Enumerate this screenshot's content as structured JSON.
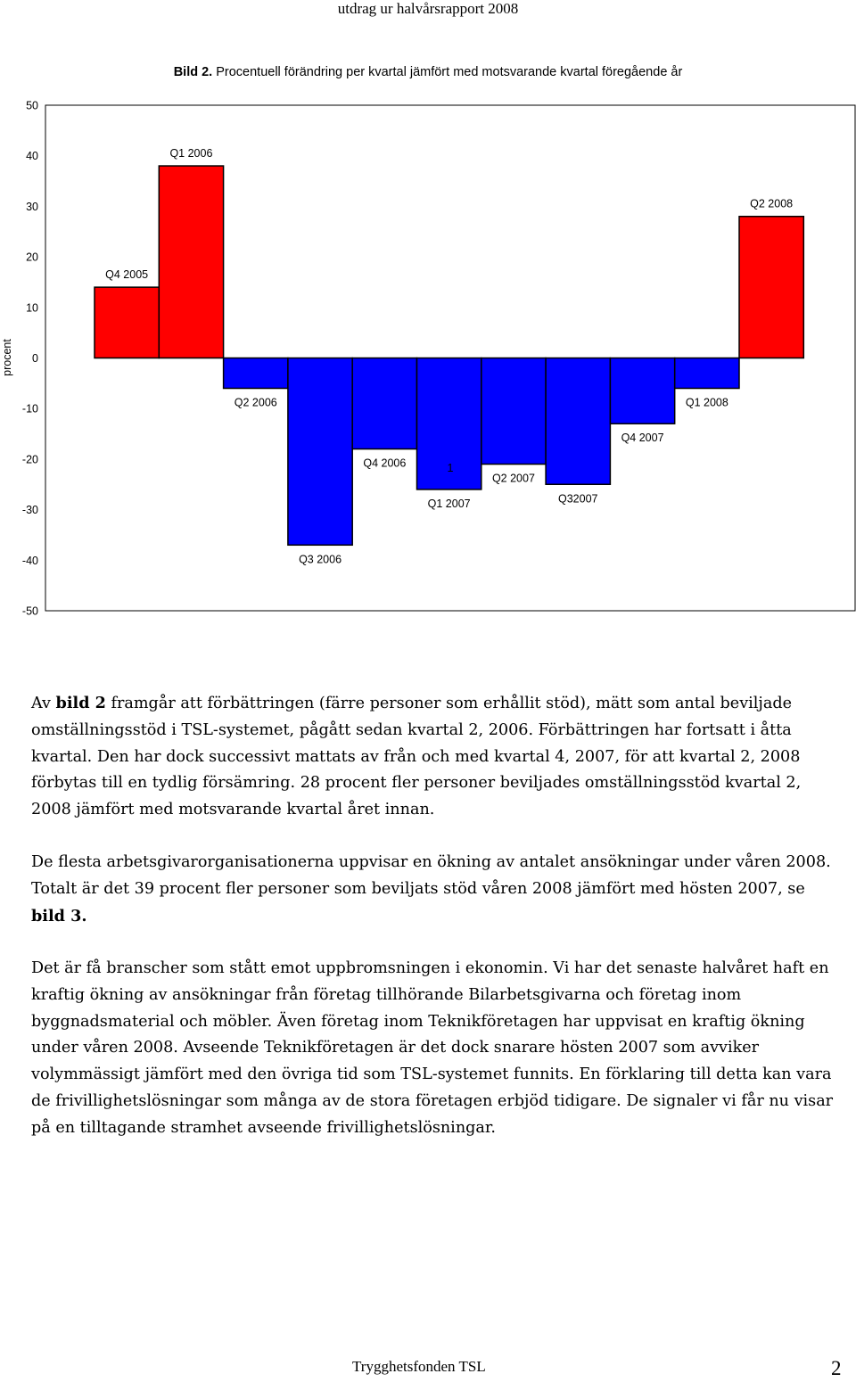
{
  "header": {
    "running_title": "utdrag ur halvårsrapport 2008"
  },
  "figure": {
    "caption_label": "Bild 2.",
    "caption_text": " Procentuell förändring per kvartal jämfört med motsvarande kvartal föregående år"
  },
  "chart_data": {
    "type": "bar",
    "title": "Procentuell förändring per kvartal jämfört med motsvarande kvartal föregående år",
    "ylabel": "procent",
    "ylim": [
      -50,
      50
    ],
    "yticks": [
      "50",
      "40",
      "30",
      "20",
      "10",
      "0",
      "-10",
      "-20",
      "-30",
      "-40",
      "-50"
    ],
    "x_tick_label": "1",
    "categories": [
      "Q4 2005",
      "Q1 2006",
      "Q2 2006",
      "Q3 2006",
      "Q4 2006",
      "Q1 2007",
      "Q2 2007",
      "Q32007",
      "Q4 2007",
      "Q1 2008",
      "Q2 2008"
    ],
    "values": [
      14,
      38,
      -6,
      -37,
      -18,
      -26,
      -21,
      -25,
      -13,
      -6,
      28
    ],
    "colors": {
      "positive": "#ff0000",
      "negative": "#0000ff",
      "outline": "#000000"
    }
  },
  "body": {
    "p1": {
      "t1": "Av ",
      "b1": "bild 2",
      "t2": " framgår att förbättringen (färre personer som erhållit stöd), mätt som antal beviljade omställningsstöd i TSL-systemet, pågått sedan kvartal 2, 2006. Förbättringen har fortsatt i åtta kvartal. Den har dock successivt mattats av från och med kvartal 4, 2007, för att kvartal 2, 2008 förbytas till en tydlig försämring. 28 procent fler personer beviljades omställningsstöd kvartal 2, 2008 jämfört med motsvarande kvartal året innan."
    },
    "p2": {
      "t1": "De flesta arbetsgivarorganisationerna uppvisar en ökning av antalet ansökningar under våren 2008. Totalt är det 39 procent fler personer som beviljats stöd våren 2008 jämfört med hösten 2007, se ",
      "b1": "bild 3."
    },
    "p3": {
      "t1": "Det är få branscher som stått emot uppbromsningen i ekonomin. Vi har det senaste halvåret haft en kraftig ökning av ansökningar från företag tillhörande Bilarbetsgivarna och företag inom byggnadsmaterial och möbler. Även företag inom Teknikföretagen har uppvisat en kraftig ökning under våren 2008. Avseende Teknikföretagen är det dock snarare hösten 2007 som avviker volymmässigt jämfört med den övriga tid som TSL-systemet funnits. En förklaring till detta kan vara de frivillighetslösningar som många av de stora företagen erbjöd tidigare. De signaler vi får nu visar på en tilltagande stramhet avseende frivillighetslösningar."
    }
  },
  "footer": {
    "org": "Trygghetsfonden TSL",
    "page": "2"
  }
}
